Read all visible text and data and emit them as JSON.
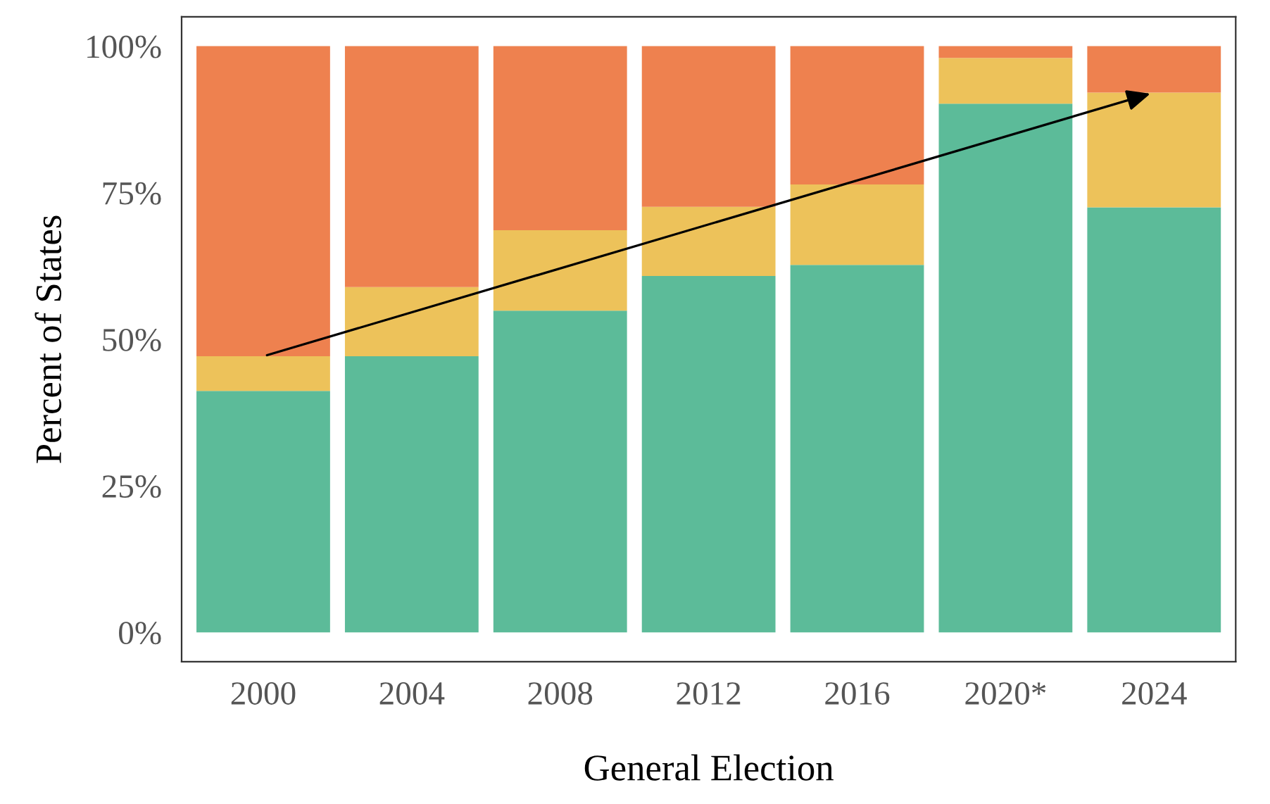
{
  "chart_data": {
    "type": "bar",
    "stacked": true,
    "xlabel": "General Election",
    "ylabel": "Percent of States",
    "categories": [
      "2000",
      "2004",
      "2008",
      "2012",
      "2016",
      "2020*",
      "2024"
    ],
    "series": [
      {
        "color": "#5cbb99",
        "values": [
          41.2,
          47.1,
          54.9,
          60.8,
          62.7,
          90.2,
          72.5
        ]
      },
      {
        "color": "#edc25a",
        "values": [
          5.9,
          11.8,
          13.7,
          11.8,
          13.7,
          7.8,
          19.6
        ]
      },
      {
        "color": "#ee814f",
        "values": [
          52.9,
          41.1,
          31.4,
          27.4,
          23.6,
          2.0,
          7.9
        ]
      }
    ],
    "ylim": [
      -5,
      105
    ],
    "yticks": [
      {
        "value": 0,
        "label": "0%"
      },
      {
        "value": 25,
        "label": "25%"
      },
      {
        "value": 50,
        "label": "50%"
      },
      {
        "value": 75,
        "label": "75%"
      },
      {
        "value": 100,
        "label": "100%"
      }
    ],
    "grid": false,
    "legend": false
  }
}
